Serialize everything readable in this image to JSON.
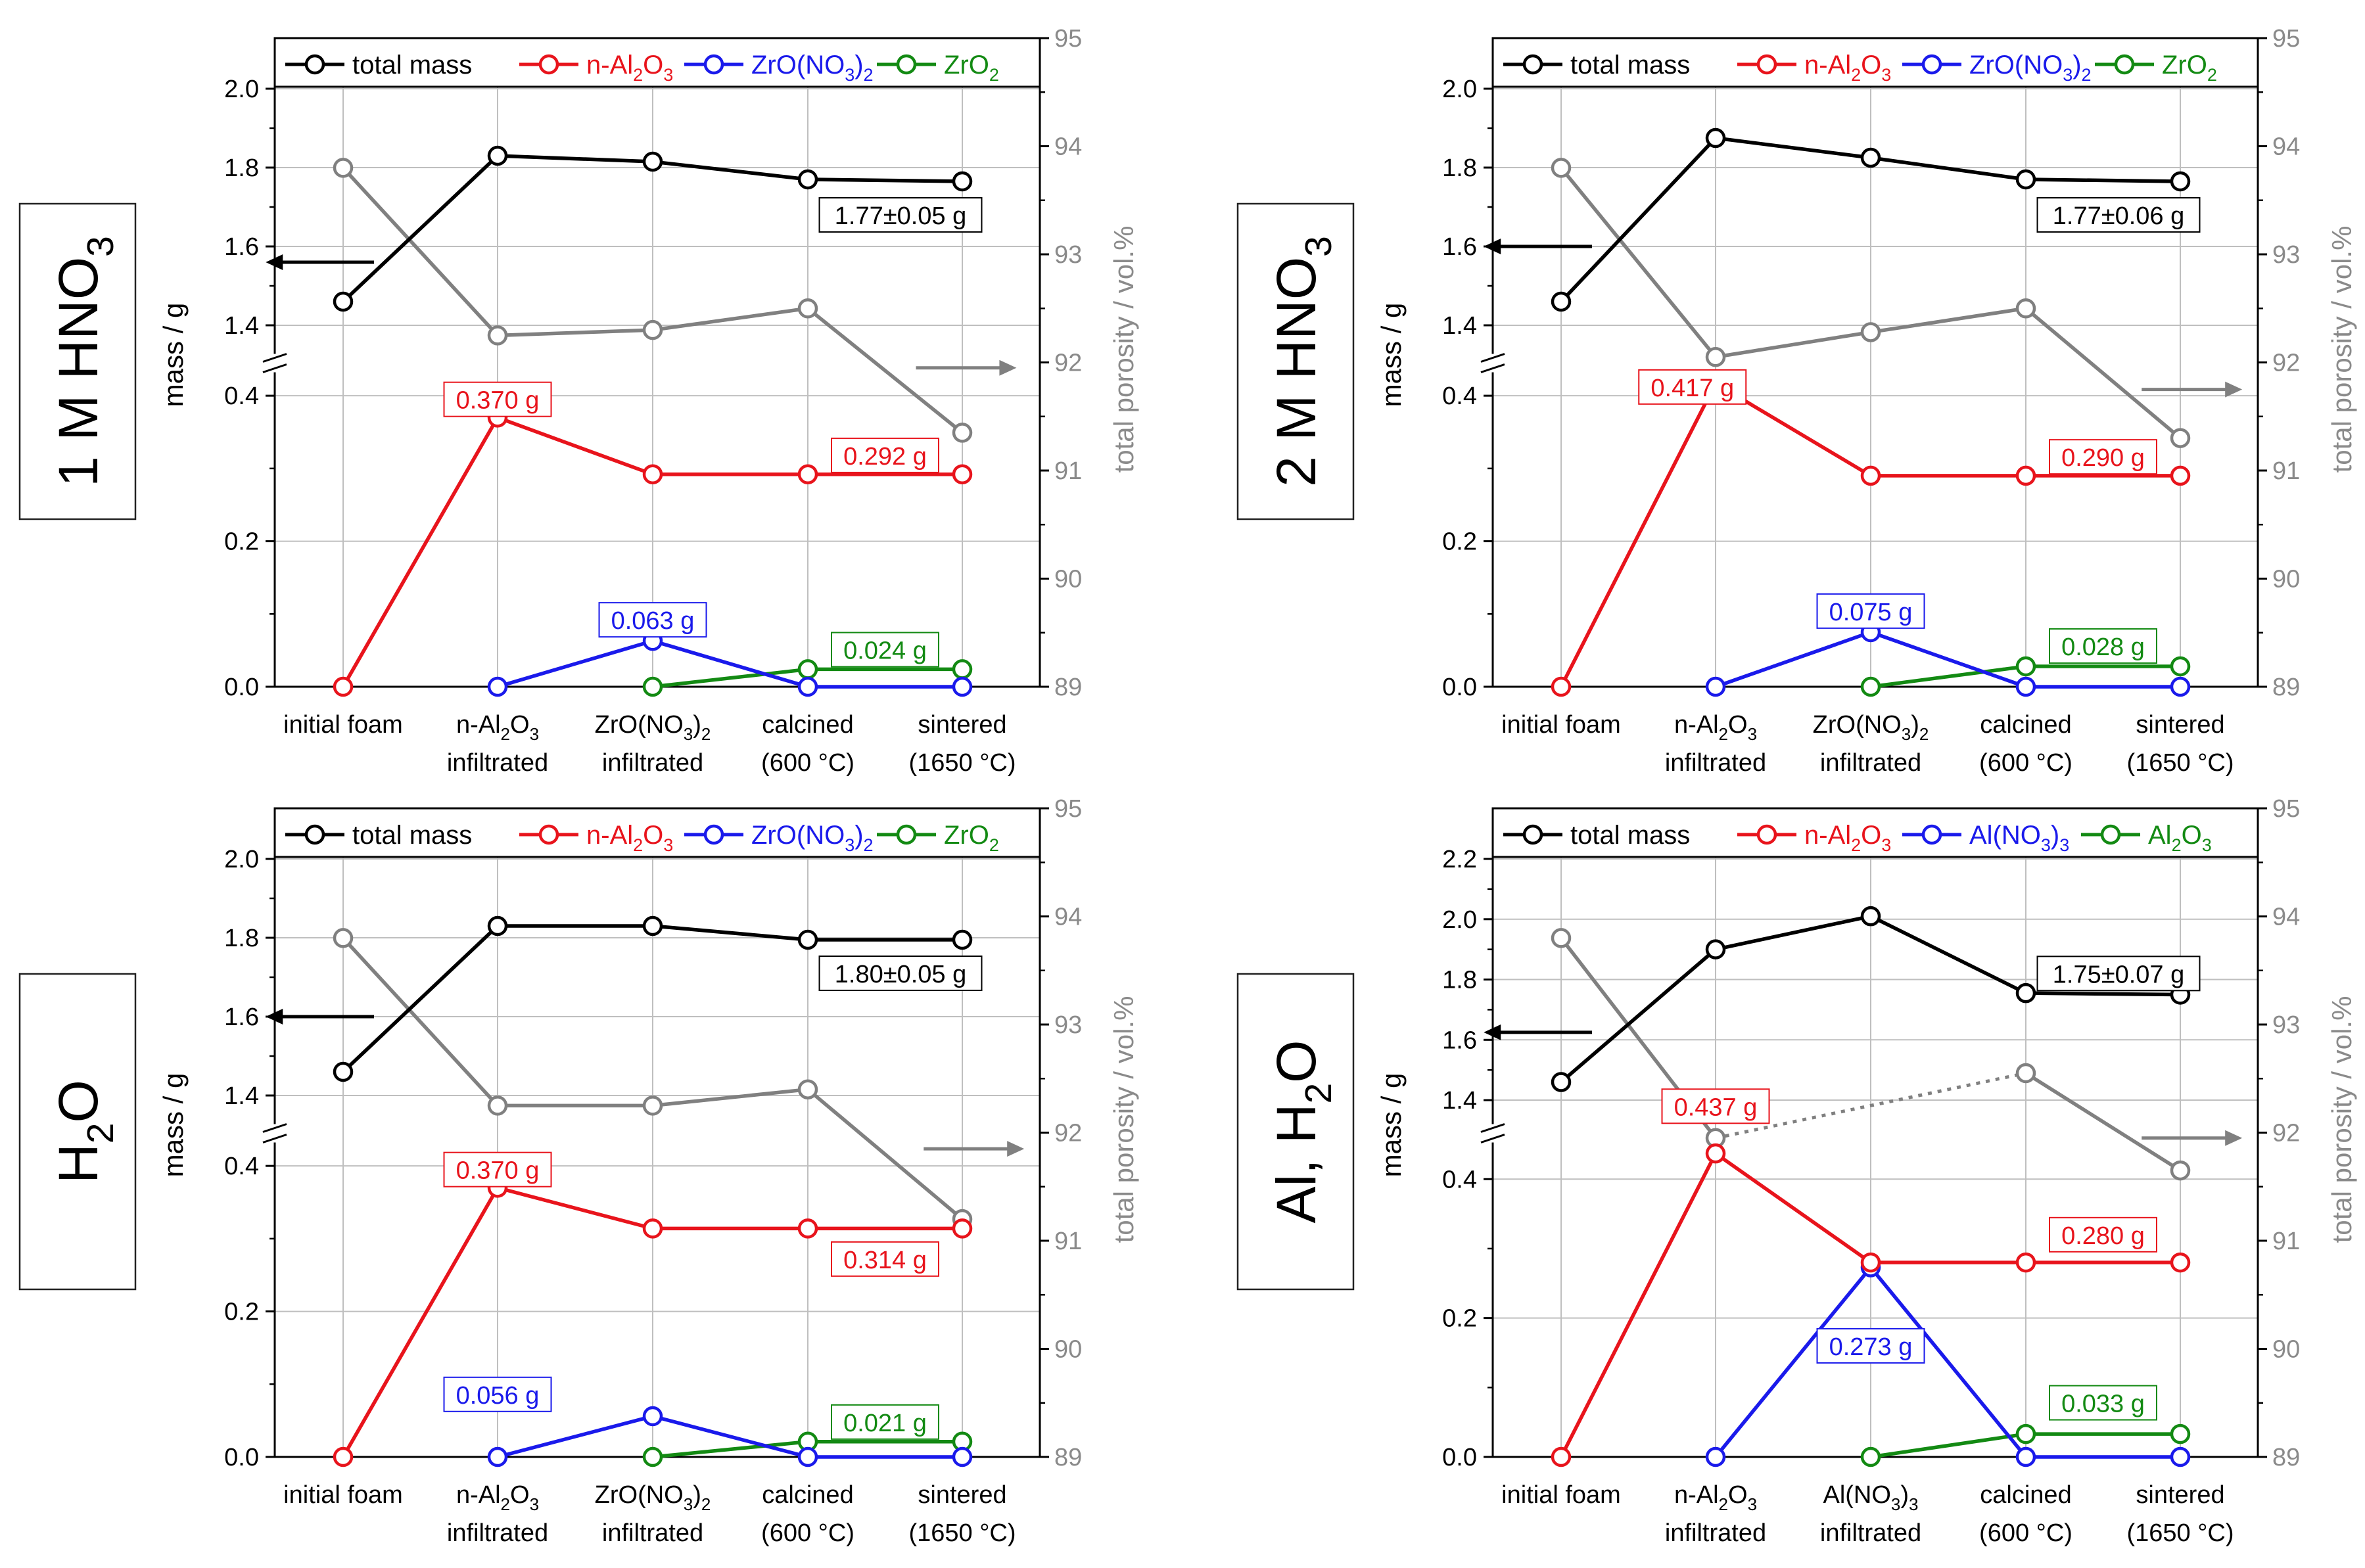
{
  "figure": {
    "categories_default": [
      "initial foam",
      "n-Al2O3 infiltrated",
      "ZrO(NO3)2 infiltrated",
      "calcined (600 °C)",
      "sintered (1650 °C)"
    ]
  },
  "chart_data": [
    {
      "type": "line",
      "panel_label": "1 M HNO3",
      "categories": [
        [
          "initial foam"
        ],
        [
          "n-Al₂O₃",
          "infiltrated"
        ],
        [
          "ZrO(NO₃)₂",
          "infiltrated"
        ],
        [
          "calcined",
          "(600 °C)"
        ],
        [
          "sintered",
          "(1650 °C)"
        ]
      ],
      "ylabel_left": "mass / g",
      "ylabel_right": "total porosity / vol.%",
      "y_upper_ticks": [
        "1.4",
        "1.6",
        "1.8",
        "2.0"
      ],
      "y_upper_range": [
        1.35,
        2.0
      ],
      "y_lower_ticks": [
        "0.0",
        "0.2",
        "0.4"
      ],
      "y_lower_range": [
        0.0,
        0.42
      ],
      "y_right_ticks": [
        "89",
        "90",
        "91",
        "92",
        "93",
        "94",
        "95"
      ],
      "y_right_range": [
        89,
        95
      ],
      "legend": [
        {
          "label": "total mass",
          "color": "#000000"
        },
        {
          "label": "n-Al₂O₃",
          "color": "#e8141c"
        },
        {
          "label": "ZrO(NO₃)₂",
          "color": "#1a1aeb"
        },
        {
          "label": "ZrO₂",
          "color": "#138a13"
        }
      ],
      "series": [
        {
          "name": "total mass",
          "axis": "upper",
          "color": "#000000",
          "values": [
            1.46,
            1.83,
            1.815,
            1.77,
            1.765
          ]
        },
        {
          "name": "n-Al2O3",
          "axis": "lower",
          "color": "#e8141c",
          "values": [
            0.0,
            0.37,
            0.292,
            0.292,
            0.292
          ]
        },
        {
          "name": "ZrO(NO3)2",
          "axis": "lower",
          "color": "#1a1aeb",
          "values": [
            null,
            0.0,
            0.063,
            0.0,
            0.0
          ]
        },
        {
          "name": "ZrO2",
          "axis": "lower",
          "color": "#138a13",
          "values": [
            null,
            null,
            0.0,
            0.024,
            0.024
          ]
        },
        {
          "name": "total porosity",
          "axis": "right",
          "color": "#808080",
          "values": [
            93.8,
            92.25,
            92.3,
            92.5,
            91.35
          ],
          "dotted_segments": []
        }
      ],
      "annotations": [
        {
          "text": "1.77±0.05 g",
          "color": "#000000",
          "axis": "upper",
          "x": 3.6,
          "y": 1.68
        },
        {
          "text": "0.370 g",
          "color": "#e8141c",
          "axis": "lower",
          "x": 1.0,
          "y": 0.395
        },
        {
          "text": "0.292 g",
          "color": "#e8141c",
          "axis": "lower",
          "x": 3.5,
          "y": 0.318
        },
        {
          "text": "0.063 g",
          "color": "#1a1aeb",
          "axis": "lower",
          "x": 2.0,
          "y": 0.092
        },
        {
          "text": "0.024 g",
          "color": "#138a13",
          "axis": "lower",
          "x": 3.5,
          "y": 0.051
        }
      ],
      "arrows": [
        {
          "dir": "left",
          "color": "#000000",
          "axis": "upper",
          "x1": 0.2,
          "x2": -0.5,
          "y": 1.56
        },
        {
          "dir": "right",
          "color": "#808080",
          "axis": "right",
          "x1": 3.7,
          "x2": 4.35,
          "y": 91.95
        }
      ]
    },
    {
      "type": "line",
      "panel_label": "2 M HNO3",
      "categories": [
        [
          "initial foam"
        ],
        [
          "n-Al₂O₃",
          "infiltrated"
        ],
        [
          "ZrO(NO₃)₂",
          "infiltrated"
        ],
        [
          "calcined",
          "(600 °C)"
        ],
        [
          "sintered",
          "(1650 °C)"
        ]
      ],
      "ylabel_left": "mass / g",
      "ylabel_right": "total porosity / vol.%",
      "y_upper_ticks": [
        "1.4",
        "1.6",
        "1.8",
        "2.0"
      ],
      "y_upper_range": [
        1.35,
        2.0
      ],
      "y_lower_ticks": [
        "0.0",
        "0.2",
        "0.4"
      ],
      "y_lower_range": [
        0.0,
        0.42
      ],
      "y_right_ticks": [
        "89",
        "90",
        "91",
        "92",
        "93",
        "94",
        "95"
      ],
      "y_right_range": [
        89,
        95
      ],
      "legend": [
        {
          "label": "total mass",
          "color": "#000000"
        },
        {
          "label": "n-Al₂O₃",
          "color": "#e8141c"
        },
        {
          "label": "ZrO(NO₃)₂",
          "color": "#1a1aeb"
        },
        {
          "label": "ZrO₂",
          "color": "#138a13"
        }
      ],
      "series": [
        {
          "name": "total mass",
          "axis": "upper",
          "color": "#000000",
          "values": [
            1.46,
            1.875,
            1.825,
            1.77,
            1.765
          ]
        },
        {
          "name": "n-Al2O3",
          "axis": "lower",
          "color": "#e8141c",
          "values": [
            0.0,
            0.417,
            0.29,
            0.29,
            0.29
          ]
        },
        {
          "name": "ZrO(NO3)2",
          "axis": "lower",
          "color": "#1a1aeb",
          "values": [
            null,
            0.0,
            0.075,
            0.0,
            0.0
          ]
        },
        {
          "name": "ZrO2",
          "axis": "lower",
          "color": "#138a13",
          "values": [
            null,
            null,
            0.0,
            0.028,
            0.028
          ]
        },
        {
          "name": "total porosity",
          "axis": "right",
          "color": "#808080",
          "values": [
            93.8,
            92.05,
            92.28,
            92.5,
            91.3
          ],
          "dotted_segments": []
        }
      ],
      "annotations": [
        {
          "text": "1.77±0.06 g",
          "color": "#000000",
          "axis": "upper",
          "x": 3.6,
          "y": 1.68
        },
        {
          "text": "0.417 g",
          "color": "#e8141c",
          "axis": "lower",
          "x": 0.85,
          "y": 0.412
        },
        {
          "text": "0.290 g",
          "color": "#e8141c",
          "axis": "lower",
          "x": 3.5,
          "y": 0.316
        },
        {
          "text": "0.075 g",
          "color": "#1a1aeb",
          "axis": "lower",
          "x": 2.0,
          "y": 0.104
        },
        {
          "text": "0.028 g",
          "color": "#138a13",
          "axis": "lower",
          "x": 3.5,
          "y": 0.056
        }
      ],
      "arrows": [
        {
          "dir": "left",
          "color": "#000000",
          "axis": "upper",
          "x1": 0.2,
          "x2": -0.5,
          "y": 1.6
        },
        {
          "dir": "right",
          "color": "#808080",
          "axis": "right",
          "x1": 3.75,
          "x2": 4.4,
          "y": 91.75
        }
      ]
    },
    {
      "type": "line",
      "panel_label": "H2O",
      "categories": [
        [
          "initial foam"
        ],
        [
          "n-Al₂O₃",
          "infiltrated"
        ],
        [
          "ZrO(NO₃)₂",
          "infiltrated"
        ],
        [
          "calcined",
          "(600 °C)"
        ],
        [
          "sintered",
          "(1650 °C)"
        ]
      ],
      "ylabel_left": "mass / g",
      "ylabel_right": "total porosity / vol.%",
      "y_upper_ticks": [
        "1.4",
        "1.6",
        "1.8",
        "2.0"
      ],
      "y_upper_range": [
        1.35,
        2.0
      ],
      "y_lower_ticks": [
        "0.0",
        "0.2",
        "0.4"
      ],
      "y_lower_range": [
        0.0,
        0.42
      ],
      "y_right_ticks": [
        "89",
        "90",
        "91",
        "92",
        "93",
        "94",
        "95"
      ],
      "y_right_range": [
        89,
        95
      ],
      "legend": [
        {
          "label": "total mass",
          "color": "#000000"
        },
        {
          "label": "n-Al₂O₃",
          "color": "#e8141c"
        },
        {
          "label": "ZrO(NO₃)₂",
          "color": "#1a1aeb"
        },
        {
          "label": "ZrO₂",
          "color": "#138a13"
        }
      ],
      "series": [
        {
          "name": "total mass",
          "axis": "upper",
          "color": "#000000",
          "values": [
            1.46,
            1.83,
            1.83,
            1.795,
            1.795
          ]
        },
        {
          "name": "n-Al2O3",
          "axis": "lower",
          "color": "#e8141c",
          "values": [
            0.0,
            0.37,
            0.314,
            0.314,
            0.314
          ]
        },
        {
          "name": "ZrO(NO3)2",
          "axis": "lower",
          "color": "#1a1aeb",
          "values": [
            null,
            0.0,
            0.056,
            0.0,
            0.0
          ]
        },
        {
          "name": "ZrO2",
          "axis": "lower",
          "color": "#138a13",
          "values": [
            null,
            null,
            0.0,
            0.021,
            0.021
          ]
        },
        {
          "name": "total porosity",
          "axis": "right",
          "color": "#808080",
          "values": [
            93.8,
            92.25,
            92.25,
            92.4,
            91.2
          ],
          "dotted_segments": []
        }
      ],
      "annotations": [
        {
          "text": "1.80±0.05 g",
          "color": "#000000",
          "axis": "upper",
          "x": 3.6,
          "y": 1.71
        },
        {
          "text": "0.370 g",
          "color": "#e8141c",
          "axis": "lower",
          "x": 1.0,
          "y": 0.395
        },
        {
          "text": "0.314 g",
          "color": "#e8141c",
          "axis": "lower",
          "x": 3.5,
          "y": 0.272
        },
        {
          "text": "0.056 g",
          "color": "#1a1aeb",
          "axis": "lower",
          "x": 1.0,
          "y": 0.086
        },
        {
          "text": "0.021 g",
          "color": "#138a13",
          "axis": "lower",
          "x": 3.5,
          "y": 0.048
        }
      ],
      "arrows": [
        {
          "dir": "left",
          "color": "#000000",
          "axis": "upper",
          "x1": 0.2,
          "x2": -0.5,
          "y": 1.6
        },
        {
          "dir": "right",
          "color": "#808080",
          "axis": "right",
          "x1": 3.75,
          "x2": 4.4,
          "y": 91.85
        }
      ]
    },
    {
      "type": "line",
      "panel_label": "Al, H2O",
      "categories": [
        [
          "initial foam"
        ],
        [
          "n-Al₂O₃",
          "infiltrated"
        ],
        [
          "Al(NO₃)₃",
          "infiltrated"
        ],
        [
          "calcined",
          "(600 °C)"
        ],
        [
          "sintered",
          "(1650 °C)"
        ]
      ],
      "ylabel_left": "mass / g",
      "ylabel_right": "total porosity / vol.%",
      "y_upper_ticks": [
        "1.4",
        "1.6",
        "1.8",
        "2.0",
        "2.2"
      ],
      "y_upper_range": [
        1.35,
        2.2
      ],
      "y_lower_ticks": [
        "0.0",
        "0.2",
        "0.4"
      ],
      "y_lower_range": [
        0.0,
        0.44
      ],
      "y_right_ticks": [
        "89",
        "90",
        "91",
        "92",
        "93",
        "94",
        "95"
      ],
      "y_right_range": [
        89,
        95
      ],
      "legend": [
        {
          "label": "total mass",
          "color": "#000000"
        },
        {
          "label": "n-Al₂O₃",
          "color": "#e8141c"
        },
        {
          "label": "Al(NO₃)₃",
          "color": "#1a1aeb"
        },
        {
          "label": "Al₂O₃",
          "color": "#138a13"
        }
      ],
      "series": [
        {
          "name": "total mass",
          "axis": "upper",
          "color": "#000000",
          "values": [
            1.46,
            1.9,
            2.01,
            1.755,
            1.75
          ]
        },
        {
          "name": "n-Al2O3",
          "axis": "lower",
          "color": "#e8141c",
          "values": [
            0.0,
            0.437,
            0.28,
            0.28,
            0.28
          ]
        },
        {
          "name": "Al(NO3)3",
          "axis": "lower",
          "color": "#1a1aeb",
          "values": [
            null,
            0.0,
            0.273,
            0.0,
            0.0
          ]
        },
        {
          "name": "Al2O3",
          "axis": "lower",
          "color": "#138a13",
          "values": [
            null,
            null,
            0.0,
            0.033,
            0.033
          ]
        },
        {
          "name": "total porosity",
          "axis": "right",
          "color": "#808080",
          "values": [
            93.8,
            91.95,
            null,
            92.55,
            91.65
          ],
          "dotted_segments": [
            [
              1,
              3
            ]
          ]
        }
      ],
      "annotations": [
        {
          "text": "1.75±0.07 g",
          "color": "#000000",
          "axis": "upper",
          "x": 3.6,
          "y": 1.82
        },
        {
          "text": "0.437 g",
          "color": "#e8141c",
          "axis": "lower",
          "x": 1.0,
          "y": 0.505
        },
        {
          "text": "0.280 g",
          "color": "#e8141c",
          "axis": "lower",
          "x": 3.5,
          "y": 0.32
        },
        {
          "text": "0.273 g",
          "color": "#1a1aeb",
          "axis": "lower",
          "x": 2.0,
          "y": 0.16
        },
        {
          "text": "0.033 g",
          "color": "#138a13",
          "axis": "lower",
          "x": 3.5,
          "y": 0.078
        }
      ],
      "arrows": [
        {
          "dir": "left",
          "color": "#000000",
          "axis": "upper",
          "x1": 0.2,
          "x2": -0.5,
          "y": 1.625
        },
        {
          "dir": "right",
          "color": "#808080",
          "axis": "right",
          "x1": 3.75,
          "x2": 4.4,
          "y": 91.95
        }
      ]
    }
  ]
}
